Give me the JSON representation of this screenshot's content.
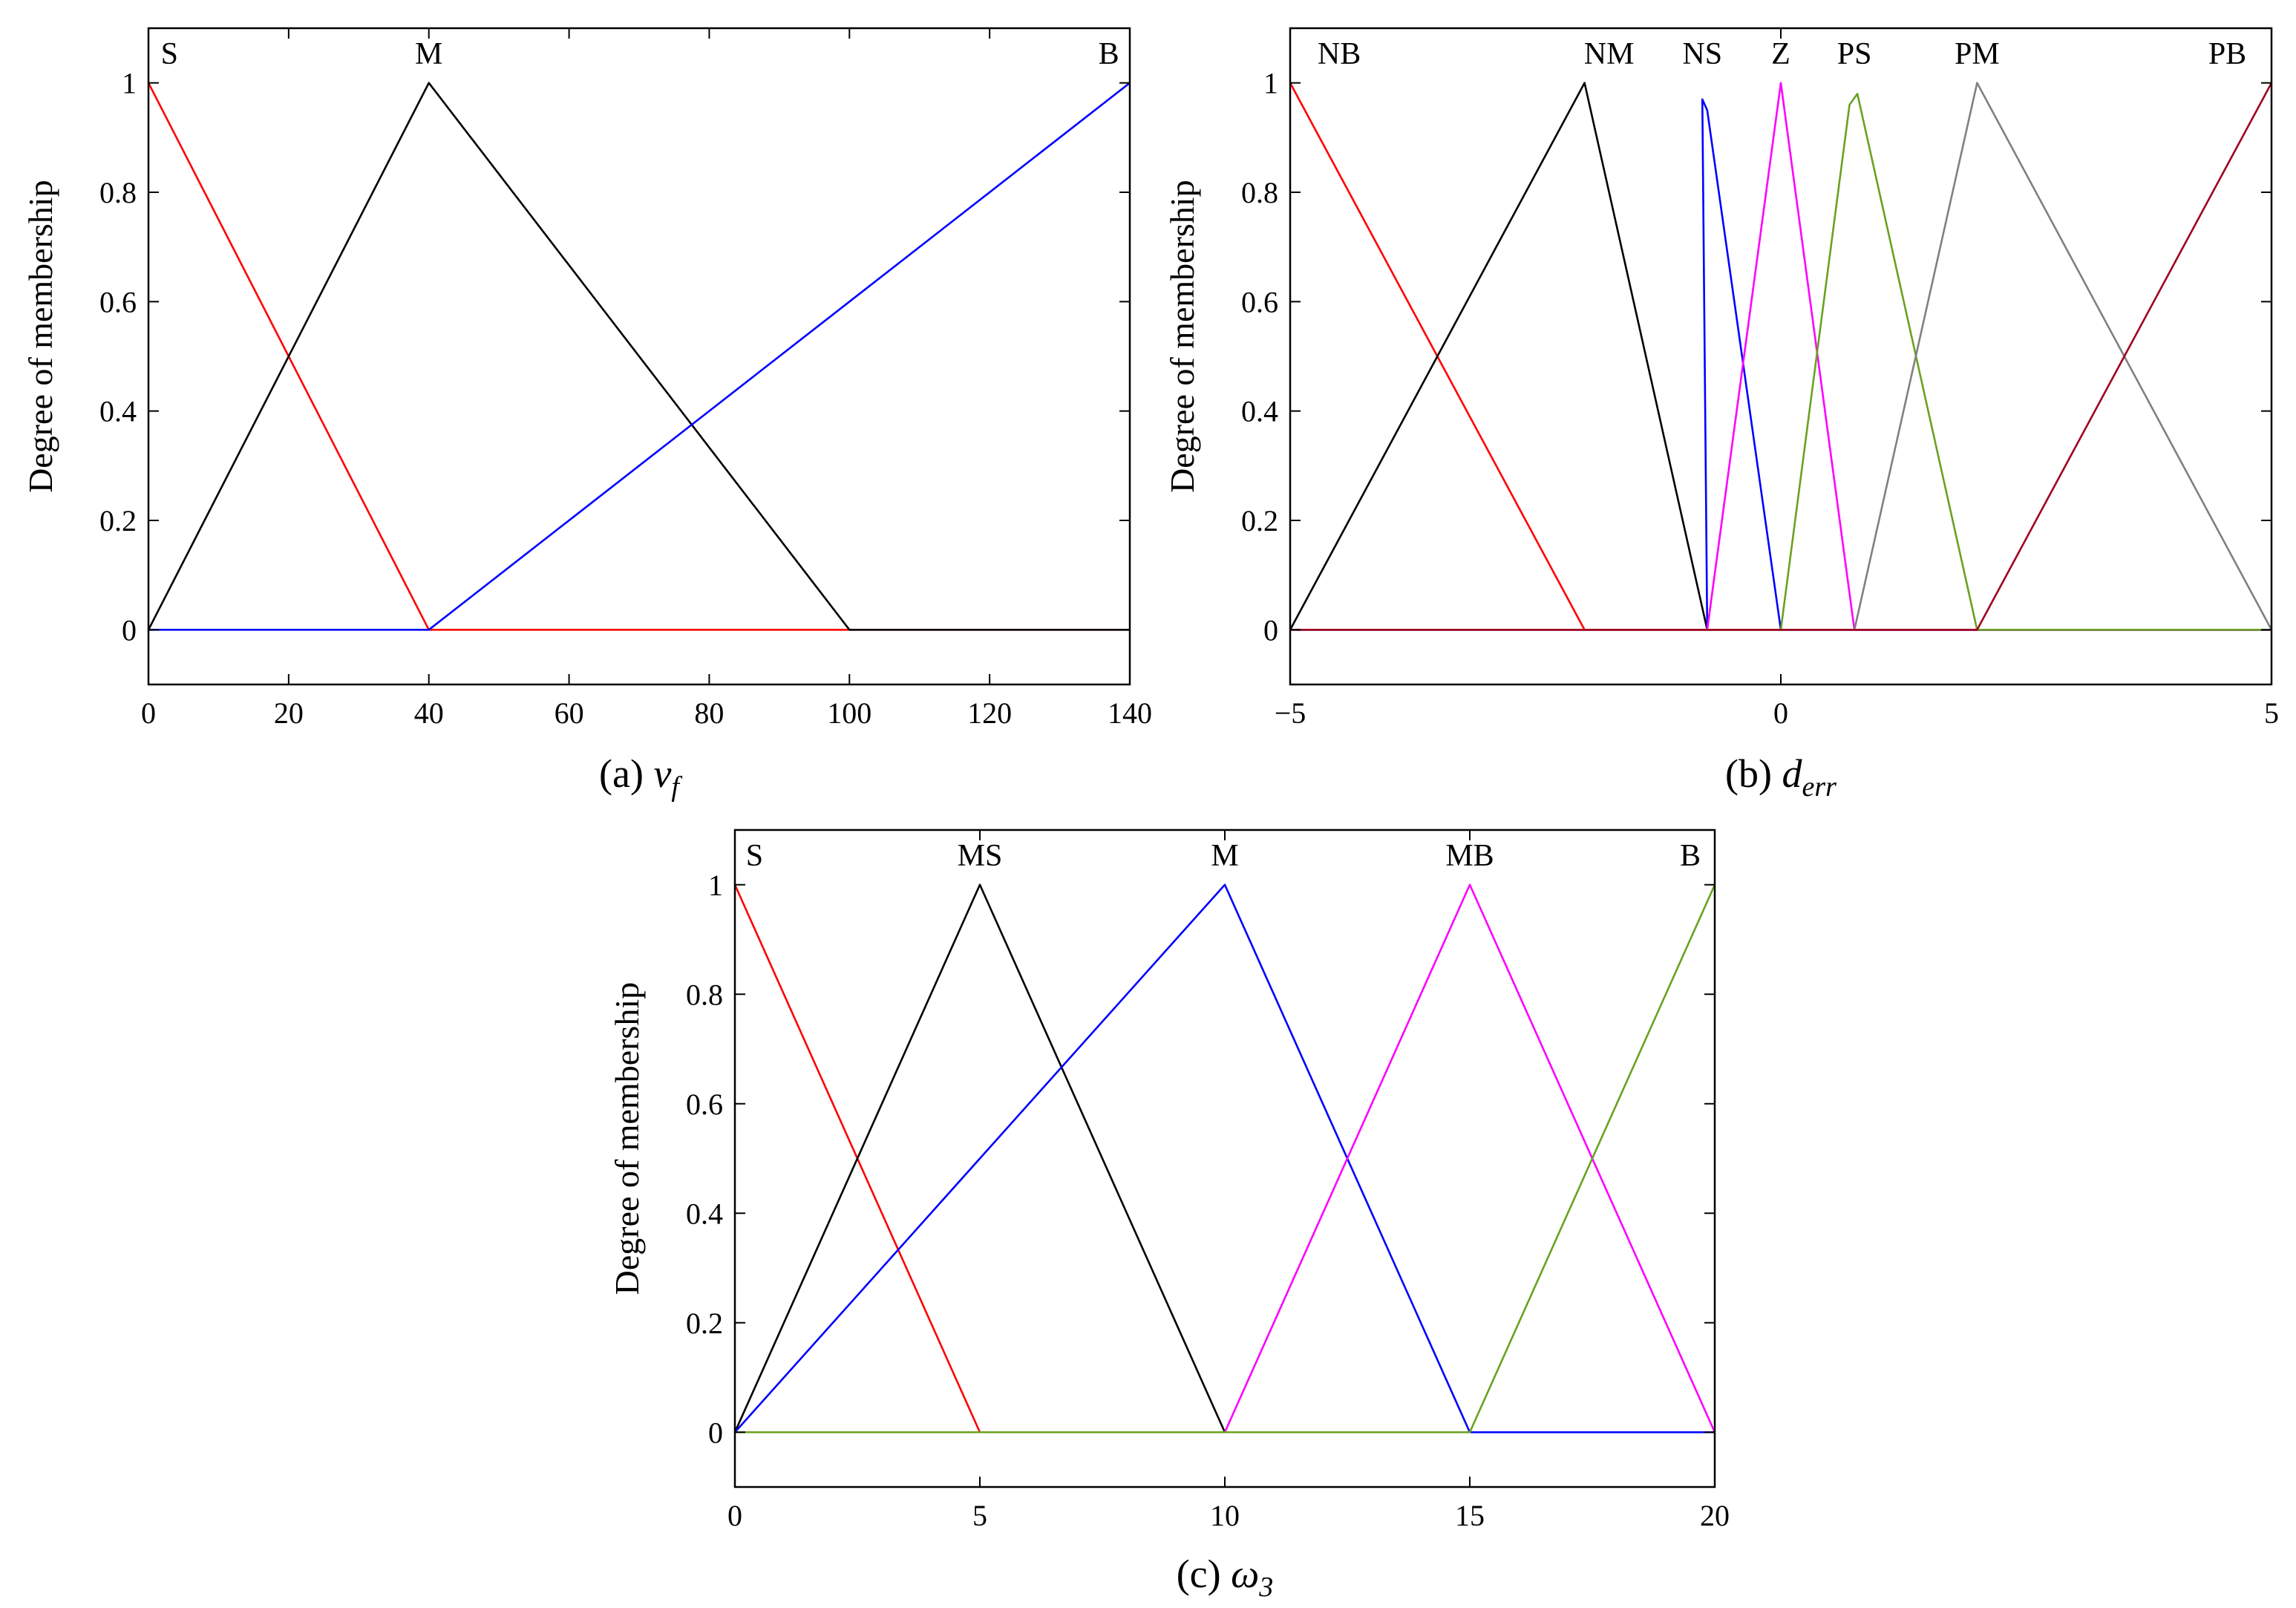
{
  "colors": {
    "red": "#ff0000",
    "black": "#000000",
    "blue": "#0000ff",
    "magenta": "#ff00ff",
    "green": "#6aa121",
    "gray": "#808080",
    "darkred": "#a0001e"
  },
  "chart_data": [
    {
      "type": "line",
      "ylabel": "Degree of membership",
      "xlim": [
        0,
        140
      ],
      "ylim": [
        -0.1,
        1.1
      ],
      "xticks": [
        0,
        20,
        40,
        60,
        80,
        100,
        120,
        140
      ],
      "xtick_labels": [
        "0",
        "20",
        "40",
        "60",
        "80",
        "100",
        "120",
        "140"
      ],
      "yticks": [
        0,
        0.2,
        0.4,
        0.6,
        0.8,
        1
      ],
      "ytick_labels": [
        "0",
        "0.2",
        "0.4",
        "0.6",
        "0.8",
        "1"
      ],
      "caption": {
        "prefix": "(a) ",
        "var": "v",
        "sub": "f"
      },
      "grid": false,
      "series": [
        {
          "name": "S",
          "label_at": 3,
          "color": "red",
          "x": [
            0,
            40,
            140
          ],
          "y": [
            1,
            0,
            0
          ]
        },
        {
          "name": "M",
          "label_at": 40,
          "color": "black",
          "x": [
            0,
            40,
            100,
            140
          ],
          "y": [
            0,
            1,
            0,
            0
          ]
        },
        {
          "name": "B",
          "label_at": 137,
          "color": "blue",
          "x": [
            0,
            40,
            140
          ],
          "y": [
            0,
            0,
            1
          ]
        }
      ]
    },
    {
      "type": "line",
      "ylabel": "Degree of membership",
      "xlim": [
        -5,
        5
      ],
      "ylim": [
        -0.1,
        1.1
      ],
      "xticks": [
        -5,
        0,
        5
      ],
      "xtick_labels": [
        "−5",
        "0",
        "5"
      ],
      "yticks": [
        0,
        0.2,
        0.4,
        0.6,
        0.8,
        1
      ],
      "ytick_labels": [
        "0",
        "0.2",
        "0.4",
        "0.6",
        "0.8",
        "1"
      ],
      "caption": {
        "prefix": "(b) ",
        "var": "d",
        "sub": "err"
      },
      "grid": false,
      "series": [
        {
          "name": "NB",
          "label_at": -4.5,
          "color": "red",
          "x": [
            -5,
            -2,
            5
          ],
          "y": [
            1,
            0,
            0
          ]
        },
        {
          "name": "NM",
          "label_at": -1.75,
          "color": "black",
          "x": [
            -5,
            -2,
            -0.75,
            5
          ],
          "y": [
            0,
            1,
            0,
            0
          ]
        },
        {
          "name": "NS",
          "label_at": -0.8,
          "color": "blue",
          "x": [
            -5,
            -0.75,
            -0.8,
            -0.75,
            0,
            5
          ],
          "y": [
            0,
            0,
            0.97,
            0.95,
            0,
            0
          ]
        },
        {
          "name": "Z",
          "label_at": 0,
          "color": "magenta",
          "x": [
            -5,
            -0.75,
            0,
            0.75,
            5
          ],
          "y": [
            0,
            0,
            1,
            0,
            0
          ]
        },
        {
          "name": "PS",
          "label_at": 0.75,
          "color": "green",
          "x": [
            -5,
            0,
            0.7,
            0.78,
            2,
            5
          ],
          "y": [
            0,
            0,
            0.96,
            0.98,
            0,
            0
          ]
        },
        {
          "name": "PM",
          "label_at": 2,
          "color": "gray",
          "x": [
            -5,
            0.75,
            2,
            5
          ],
          "y": [
            0,
            0,
            1,
            0
          ]
        },
        {
          "name": "PB",
          "label_at": 4.55,
          "color": "darkred",
          "x": [
            -5,
            2,
            5
          ],
          "y": [
            0,
            0,
            1
          ]
        }
      ]
    },
    {
      "type": "line",
      "ylabel": "Degree of membership",
      "xlim": [
        0,
        20
      ],
      "ylim": [
        -0.1,
        1.1
      ],
      "xticks": [
        0,
        5,
        10,
        15,
        20
      ],
      "xtick_labels": [
        "0",
        "5",
        "10",
        "15",
        "20"
      ],
      "yticks": [
        0,
        0.2,
        0.4,
        0.6,
        0.8,
        1
      ],
      "ytick_labels": [
        "0",
        "0.2",
        "0.4",
        "0.6",
        "0.8",
        "1"
      ],
      "caption": {
        "prefix": "(c) ",
        "var": "ω",
        "sub": "3"
      },
      "grid": false,
      "series": [
        {
          "name": "S",
          "label_at": 0.4,
          "color": "red",
          "x": [
            0,
            5,
            20
          ],
          "y": [
            1,
            0,
            0
          ]
        },
        {
          "name": "MS",
          "label_at": 5,
          "color": "black",
          "x": [
            0,
            5,
            10,
            20
          ],
          "y": [
            0,
            1,
            0,
            0
          ]
        },
        {
          "name": "M",
          "label_at": 10,
          "color": "blue",
          "x": [
            0,
            10,
            15,
            20
          ],
          "y": [
            0,
            1,
            0,
            0
          ]
        },
        {
          "name": "MB",
          "label_at": 15,
          "color": "magenta",
          "x": [
            0,
            10,
            15,
            20
          ],
          "y": [
            0,
            0,
            1,
            0
          ]
        },
        {
          "name": "B",
          "label_at": 19.5,
          "color": "green",
          "x": [
            0,
            15,
            20
          ],
          "y": [
            0,
            0,
            1
          ]
        }
      ]
    }
  ]
}
